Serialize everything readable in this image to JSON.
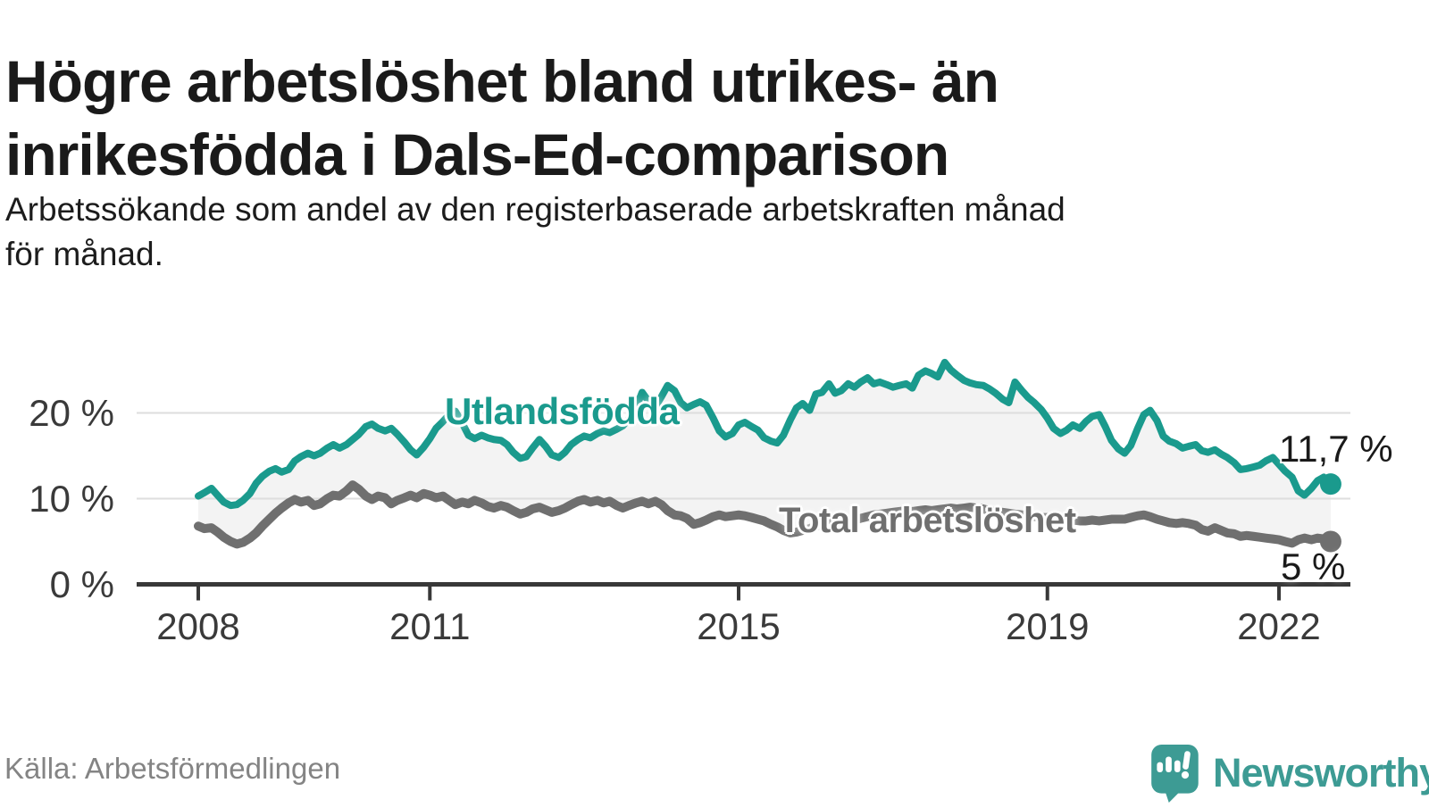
{
  "header": {
    "title_lines": [
      "Högre arbetslöshet bland utrikes- än",
      "inrikesfödda i Dals-Ed-comparison"
    ],
    "subtitle_lines": [
      "Arbetssökande som andel av den registerbaserade arbetskraften månad",
      "för månad."
    ]
  },
  "footer": {
    "source": "Källa: Arbetsförmedlingen",
    "logo_text": "Newsworthy"
  },
  "colors": {
    "accent_teal": "#1a9a8d",
    "line_gray": "#6f6f6f",
    "fill_between": "#f3f3f3",
    "grid": "#dedede",
    "axis": "#383838",
    "tick_text": "#3a3a3a",
    "text": "#1a1a1a",
    "source_text": "#848484",
    "logo": "#3d9b94"
  },
  "chart_data": {
    "type": "line",
    "title": "Högre arbetslöshet bland utrikes- än inrikesfödda i Dals-Ed-comparison",
    "subtitle": "Arbetssökande som andel av den registerbaserade arbetskraften månad för månad.",
    "xlabel": "",
    "ylabel": "",
    "grid": "horizontal",
    "xlim": [
      2007.2,
      2022.93
    ],
    "ylim": [
      0,
      27.5
    ],
    "x_ticks": [
      {
        "value": 2008,
        "label": "2008"
      },
      {
        "value": 2011,
        "label": "2011"
      },
      {
        "value": 2015,
        "label": "2015"
      },
      {
        "value": 2019,
        "label": "2019"
      },
      {
        "value": 2022,
        "label": "2022"
      }
    ],
    "y_ticks": [
      {
        "value": 0,
        "label": "0 %"
      },
      {
        "value": 10,
        "label": "10 %"
      },
      {
        "value": 20,
        "label": "20 %"
      }
    ],
    "fill_between": "#f3f3f3",
    "x": [
      2008.0,
      2008.08,
      2008.17,
      2008.25,
      2008.33,
      2008.42,
      2008.5,
      2008.58,
      2008.67,
      2008.75,
      2008.83,
      2008.92,
      2009.0,
      2009.08,
      2009.17,
      2009.25,
      2009.33,
      2009.42,
      2009.5,
      2009.58,
      2009.67,
      2009.75,
      2009.83,
      2009.92,
      2010.0,
      2010.08,
      2010.17,
      2010.25,
      2010.33,
      2010.42,
      2010.5,
      2010.58,
      2010.67,
      2010.75,
      2010.83,
      2010.92,
      2011.0,
      2011.08,
      2011.17,
      2011.25,
      2011.33,
      2011.42,
      2011.5,
      2011.58,
      2011.67,
      2011.75,
      2011.83,
      2011.92,
      2012.0,
      2012.08,
      2012.17,
      2012.25,
      2012.33,
      2012.42,
      2012.5,
      2012.58,
      2012.67,
      2012.75,
      2012.83,
      2012.92,
      2013.0,
      2013.08,
      2013.17,
      2013.25,
      2013.33,
      2013.42,
      2013.5,
      2013.58,
      2013.67,
      2013.75,
      2013.83,
      2013.92,
      2014.0,
      2014.08,
      2014.17,
      2014.25,
      2014.33,
      2014.42,
      2014.5,
      2014.58,
      2014.67,
      2014.75,
      2014.83,
      2014.92,
      2015.0,
      2015.08,
      2015.17,
      2015.25,
      2015.33,
      2015.42,
      2015.5,
      2015.58,
      2015.67,
      2015.75,
      2015.83,
      2015.92,
      2016.0,
      2016.08,
      2016.17,
      2016.25,
      2016.33,
      2016.42,
      2016.5,
      2016.58,
      2016.67,
      2016.75,
      2016.83,
      2016.92,
      2017.0,
      2017.08,
      2017.17,
      2017.25,
      2017.33,
      2017.42,
      2017.5,
      2017.58,
      2017.67,
      2017.75,
      2017.83,
      2017.92,
      2018.0,
      2018.08,
      2018.17,
      2018.25,
      2018.33,
      2018.42,
      2018.5,
      2018.58,
      2018.67,
      2018.75,
      2018.83,
      2018.92,
      2019.0,
      2019.08,
      2019.17,
      2019.25,
      2019.33,
      2019.42,
      2019.5,
      2019.58,
      2019.67,
      2019.75,
      2019.83,
      2019.92,
      2020.0,
      2020.08,
      2020.17,
      2020.25,
      2020.33,
      2020.42,
      2020.5,
      2020.58,
      2020.67,
      2020.75,
      2020.83,
      2020.92,
      2021.0,
      2021.08,
      2021.17,
      2021.25,
      2021.33,
      2021.42,
      2021.5,
      2021.58,
      2021.67,
      2021.75,
      2021.83,
      2021.92,
      2022.0,
      2022.08,
      2022.17,
      2022.25,
      2022.33,
      2022.42,
      2022.5,
      2022.58,
      2022.67
    ],
    "series": [
      {
        "name": "Utlandsfödda",
        "color": "#1a9a8d",
        "end_label": "11,7 %",
        "end_value": 11.7,
        "values": [
          10.3,
          10.7,
          11.2,
          10.4,
          9.6,
          9.2,
          9.3,
          9.8,
          10.6,
          11.8,
          12.6,
          13.2,
          13.5,
          13.1,
          13.4,
          14.4,
          14.9,
          15.3,
          15.0,
          15.3,
          15.9,
          16.3,
          15.9,
          16.3,
          16.9,
          17.5,
          18.4,
          18.7,
          18.2,
          17.9,
          18.2,
          17.5,
          16.6,
          15.7,
          15.1,
          16.0,
          17.0,
          18.2,
          19.0,
          19.8,
          20.2,
          18.8,
          17.4,
          17.0,
          17.4,
          17.1,
          16.9,
          16.8,
          16.3,
          15.4,
          14.7,
          14.9,
          15.9,
          16.9,
          16.1,
          15.1,
          14.8,
          15.4,
          16.3,
          16.9,
          17.3,
          17.1,
          17.6,
          17.9,
          17.7,
          18.1,
          18.5,
          19.3,
          20.6,
          22.4,
          21.4,
          20.7,
          21.9,
          23.2,
          22.6,
          21.2,
          20.6,
          21.0,
          21.3,
          20.9,
          19.4,
          17.9,
          17.2,
          17.6,
          18.6,
          18.9,
          18.4,
          18.0,
          17.1,
          16.7,
          16.5,
          17.4,
          19.2,
          20.6,
          21.1,
          20.3,
          22.2,
          22.4,
          23.4,
          22.3,
          22.6,
          23.4,
          23.0,
          23.6,
          24.1,
          23.4,
          23.6,
          23.3,
          23.0,
          23.2,
          23.4,
          22.9,
          24.4,
          24.9,
          24.6,
          24.2,
          25.9,
          25.0,
          24.4,
          23.8,
          23.5,
          23.3,
          23.2,
          22.8,
          22.3,
          21.6,
          21.2,
          23.6,
          22.6,
          21.8,
          21.2,
          20.4,
          19.4,
          18.2,
          17.6,
          18.0,
          18.6,
          18.2,
          19.0,
          19.6,
          19.8,
          18.4,
          16.8,
          15.8,
          15.3,
          16.2,
          18.2,
          19.8,
          20.3,
          19.1,
          17.3,
          16.7,
          16.4,
          15.9,
          16.1,
          16.3,
          15.6,
          15.4,
          15.7,
          15.2,
          14.8,
          14.2,
          13.4,
          13.5,
          13.7,
          13.9,
          14.4,
          14.8,
          14.0,
          13.2,
          12.5,
          10.9,
          10.4,
          11.2,
          12.1,
          12.5,
          11.7
        ]
      },
      {
        "name": "Total arbetslöshet",
        "color": "#6f6f6f",
        "end_label": "5 %",
        "end_value": 5.0,
        "values": [
          6.8,
          6.5,
          6.6,
          6.1,
          5.5,
          5.0,
          4.7,
          4.9,
          5.4,
          6.0,
          6.8,
          7.6,
          8.3,
          8.9,
          9.5,
          9.9,
          9.6,
          9.8,
          9.2,
          9.4,
          10.0,
          10.4,
          10.3,
          10.9,
          11.6,
          11.1,
          10.3,
          9.9,
          10.3,
          10.1,
          9.4,
          9.8,
          10.1,
          10.4,
          10.1,
          10.6,
          10.4,
          10.1,
          10.3,
          9.8,
          9.3,
          9.6,
          9.4,
          9.8,
          9.5,
          9.1,
          8.9,
          9.2,
          9.0,
          8.6,
          8.2,
          8.4,
          8.8,
          9.0,
          8.7,
          8.4,
          8.6,
          8.9,
          9.3,
          9.7,
          9.9,
          9.6,
          9.8,
          9.5,
          9.7,
          9.2,
          8.9,
          9.2,
          9.5,
          9.7,
          9.4,
          9.7,
          9.3,
          8.6,
          8.1,
          8.0,
          7.7,
          7.0,
          7.2,
          7.5,
          7.9,
          8.1,
          7.9,
          8.0,
          8.1,
          8.0,
          7.8,
          7.6,
          7.4,
          7.0,
          6.7,
          6.3,
          6.0,
          6.1,
          6.3,
          6.5,
          6.8,
          7.0,
          7.2,
          7.3,
          7.2,
          7.4,
          7.5,
          7.7,
          7.9,
          8.1,
          8.2,
          8.3,
          8.4,
          8.5,
          8.6,
          8.5,
          8.6,
          8.7,
          8.6,
          8.7,
          8.8,
          8.9,
          8.8,
          8.9,
          9.0,
          8.9,
          8.8,
          8.6,
          8.5,
          8.4,
          8.3,
          8.2,
          8.1,
          8.0,
          7.9,
          7.8,
          7.8,
          7.7,
          7.6,
          7.5,
          7.5,
          7.4,
          7.4,
          7.5,
          7.4,
          7.5,
          7.6,
          7.6,
          7.6,
          7.8,
          8.0,
          8.1,
          7.9,
          7.6,
          7.4,
          7.2,
          7.1,
          7.2,
          7.1,
          6.9,
          6.4,
          6.2,
          6.6,
          6.3,
          6.0,
          5.9,
          5.6,
          5.7,
          5.6,
          5.5,
          5.4,
          5.3,
          5.2,
          5.0,
          4.8,
          5.2,
          5.4,
          5.2,
          5.4,
          5.3,
          5.0
        ]
      }
    ]
  }
}
